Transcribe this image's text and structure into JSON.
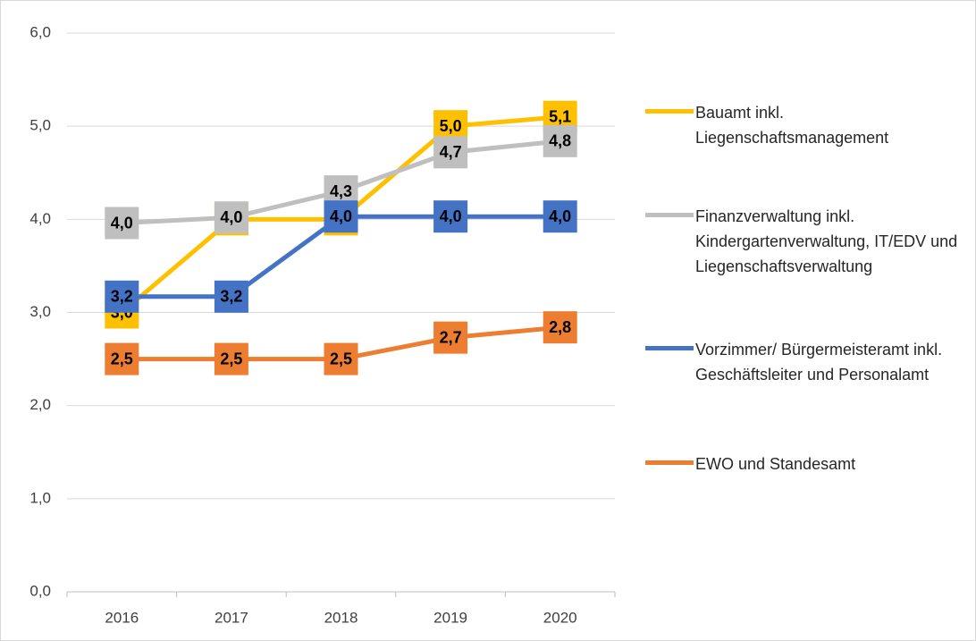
{
  "chart_data": {
    "type": "line",
    "categories": [
      "2016",
      "2017",
      "2018",
      "2019",
      "2020"
    ],
    "series": [
      {
        "name": "Bauamt inkl. Liegenschaftsmanagement",
        "color": "#FFC000",
        "values": [
          3.0,
          4.0,
          4.0,
          5.0,
          5.1
        ],
        "value_labels": [
          "3,0",
          "4,0",
          "4,0",
          "5,0",
          "5,1"
        ]
      },
      {
        "name": "Finanzverwaltung inkl. Kindergartenverwaltung, IT/EDV und Liegenschaftsverwaltung",
        "color": "#BFBFBF",
        "values": [
          3.96,
          4.02,
          4.3,
          4.72,
          4.84
        ],
        "value_labels": [
          "4,0",
          "4,0",
          "4,3",
          "4,7",
          "4,8"
        ]
      },
      {
        "name": "Vorzimmer/ Bürgermeisteramt inkl. Geschäftsleiter und Personalamt",
        "color": "#4472C4",
        "values": [
          3.17,
          3.17,
          4.03,
          4.03,
          4.03
        ],
        "value_labels": [
          "3,2",
          "3,2",
          "4,0",
          "4,0",
          "4,0"
        ]
      },
      {
        "name": "EWO und Standesamt",
        "color": "#ED7D31",
        "values": [
          2.5,
          2.5,
          2.5,
          2.73,
          2.84
        ],
        "value_labels": [
          "2,5",
          "2,5",
          "2,5",
          "2,7",
          "2,8"
        ]
      }
    ],
    "ylim": [
      0,
      6
    ],
    "yticks": [
      {
        "value": 0,
        "label": "0,0"
      },
      {
        "value": 1,
        "label": "1,0"
      },
      {
        "value": 2,
        "label": "2,0"
      },
      {
        "value": 3,
        "label": "3,0"
      },
      {
        "value": 4,
        "label": "4,0"
      },
      {
        "value": 5,
        "label": "5,0"
      },
      {
        "value": 6,
        "label": "6,0"
      }
    ],
    "grid": true,
    "legend": "right"
  }
}
